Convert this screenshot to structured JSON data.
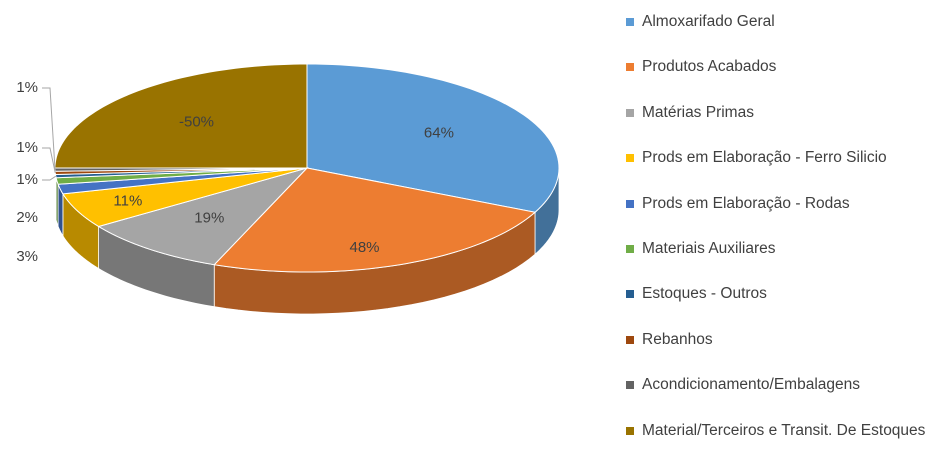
{
  "chart_data": {
    "type": "pie3d",
    "categories": [
      "Almoxarifado Geral",
      "Produtos Acabados",
      "Matérias Primas",
      "Prods em Elaboração - Ferro Silicio",
      "Prods em Elaboração - Rodas",
      "Materiais Auxiliares",
      "Estoques - Outros",
      "Rebanhos",
      "Acondicionamento/Embalagens",
      "Material/Terceiros e Transit. De Estoques"
    ],
    "values": [
      64,
      48,
      19,
      11,
      3,
      2,
      1,
      1,
      1,
      -50
    ],
    "value_labels": [
      "64%",
      "48%",
      "19%",
      "11%",
      "3%",
      "2%",
      "1%",
      "1%",
      "1%",
      "-50%"
    ],
    "colors": [
      "#5b9bd5",
      "#ed7d31",
      "#a5a5a5",
      "#ffc000",
      "#4472c4",
      "#70ad47",
      "#255e91",
      "#9e480e",
      "#636363",
      "#997300"
    ],
    "legend": "right"
  }
}
